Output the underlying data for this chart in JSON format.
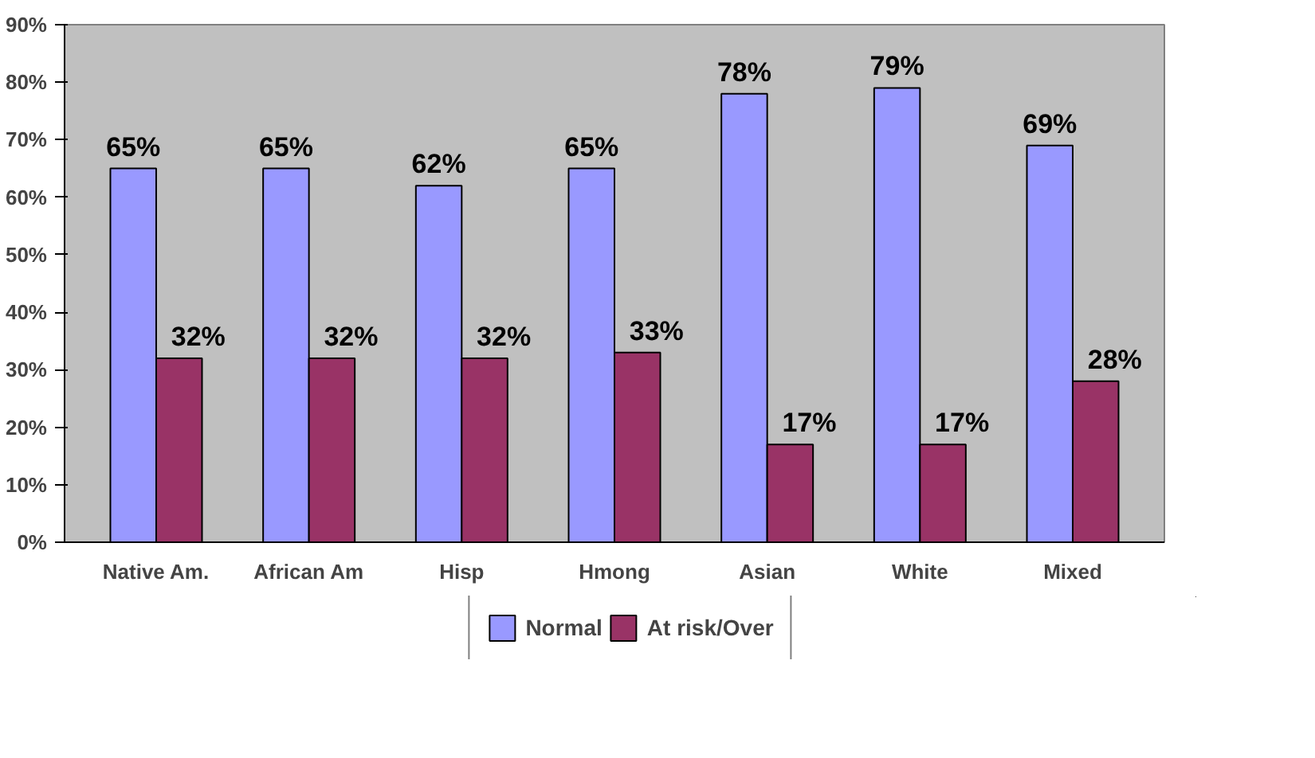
{
  "chart_data": {
    "type": "bar",
    "categories": [
      "Native Am.",
      "African Am",
      "Hisp",
      "Hmong",
      "Asian",
      "White",
      "Mixed"
    ],
    "series": [
      {
        "name": "Normal",
        "color": "#9999ff",
        "values": [
          65,
          65,
          62,
          65,
          78,
          79,
          69
        ],
        "value_labels": [
          "65%",
          "65%",
          "62%",
          "65%",
          "78%",
          "79%",
          "69%"
        ]
      },
      {
        "name": "At risk/Over",
        "color": "#993366",
        "values": [
          32,
          32,
          32,
          33,
          17,
          17,
          28
        ],
        "value_labels": [
          "32%",
          "32%",
          "32%",
          "33%",
          "17%",
          "17%",
          "28%"
        ]
      }
    ],
    "ylim": [
      0,
      90
    ],
    "yticks": [
      {
        "value": 0,
        "label": "0%"
      },
      {
        "value": 10,
        "label": "10%"
      },
      {
        "value": 20,
        "label": "20%"
      },
      {
        "value": 30,
        "label": "30%"
      },
      {
        "value": 40,
        "label": "40%"
      },
      {
        "value": 50,
        "label": "50%"
      },
      {
        "value": 60,
        "label": "60%"
      },
      {
        "value": 70,
        "label": "70%"
      },
      {
        "value": 80,
        "label": "80%"
      },
      {
        "value": 90,
        "label": "90%"
      }
    ],
    "grid": false,
    "legend": "bottom"
  }
}
